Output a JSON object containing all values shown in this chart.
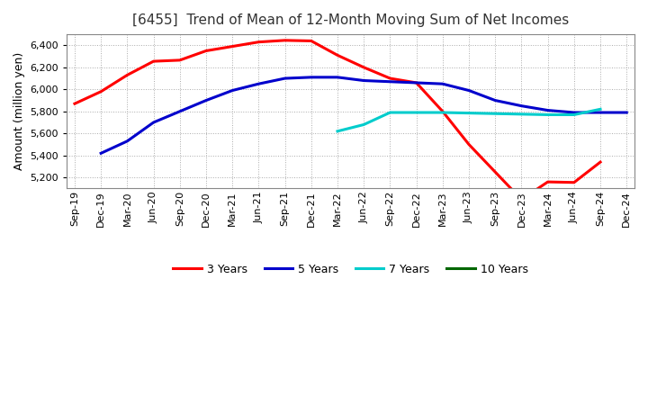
{
  "title": "[6455]  Trend of Mean of 12-Month Moving Sum of Net Incomes",
  "ylabel": "Amount (million yen)",
  "background_color": "#ffffff",
  "plot_bg_color": "#ffffff",
  "grid_color": "#aaaaaa",
  "ylim": [
    5100,
    6500
  ],
  "yticks": [
    5200,
    5400,
    5600,
    5800,
    6000,
    6200,
    6400
  ],
  "x_labels": [
    "Sep-19",
    "Dec-19",
    "Mar-20",
    "Jun-20",
    "Sep-20",
    "Dec-20",
    "Mar-21",
    "Jun-21",
    "Sep-21",
    "Dec-21",
    "Mar-22",
    "Jun-22",
    "Sep-22",
    "Dec-22",
    "Mar-23",
    "Jun-23",
    "Sep-23",
    "Dec-23",
    "Mar-24",
    "Jun-24",
    "Sep-24",
    "Dec-24"
  ],
  "series": {
    "3 Years": {
      "color": "#ff0000",
      "data_x": [
        0,
        1,
        2,
        3,
        4,
        5,
        6,
        7,
        8,
        9,
        10,
        11,
        12,
        13,
        14,
        15,
        16,
        17,
        18,
        19,
        20
      ],
      "data_y": [
        5870,
        5980,
        6130,
        6255,
        6265,
        6350,
        6390,
        6430,
        6445,
        6440,
        6310,
        6200,
        6100,
        6060,
        5800,
        5500,
        5250,
        5000,
        5160,
        5155,
        5340
      ]
    },
    "5 Years": {
      "color": "#0000cc",
      "data_x": [
        1,
        2,
        3,
        4,
        5,
        6,
        7,
        8,
        9,
        10,
        11,
        12,
        13,
        14,
        15,
        16,
        17,
        18,
        19,
        20,
        21
      ],
      "data_y": [
        5420,
        5530,
        5700,
        5800,
        5900,
        5990,
        6050,
        6100,
        6110,
        6110,
        6080,
        6070,
        6060,
        6050,
        5990,
        5900,
        5850,
        5810,
        5790,
        5790,
        5790
      ]
    },
    "7 Years": {
      "color": "#00cccc",
      "data_x": [
        10,
        11,
        12,
        13,
        14,
        15,
        16,
        17,
        18,
        19,
        20
      ],
      "data_y": [
        5620,
        5680,
        5790,
        5790,
        5790,
        5785,
        5780,
        5775,
        5770,
        5770,
        5820
      ]
    },
    "10 Years": {
      "color": "#006600",
      "data_x": [],
      "data_y": []
    }
  },
  "legend": {
    "labels": [
      "3 Years",
      "5 Years",
      "7 Years",
      "10 Years"
    ],
    "colors": [
      "#ff0000",
      "#0000cc",
      "#00cccc",
      "#006600"
    ]
  },
  "title_fontsize": 11,
  "ylabel_fontsize": 9,
  "tick_fontsize": 8,
  "linewidth": 2.2
}
